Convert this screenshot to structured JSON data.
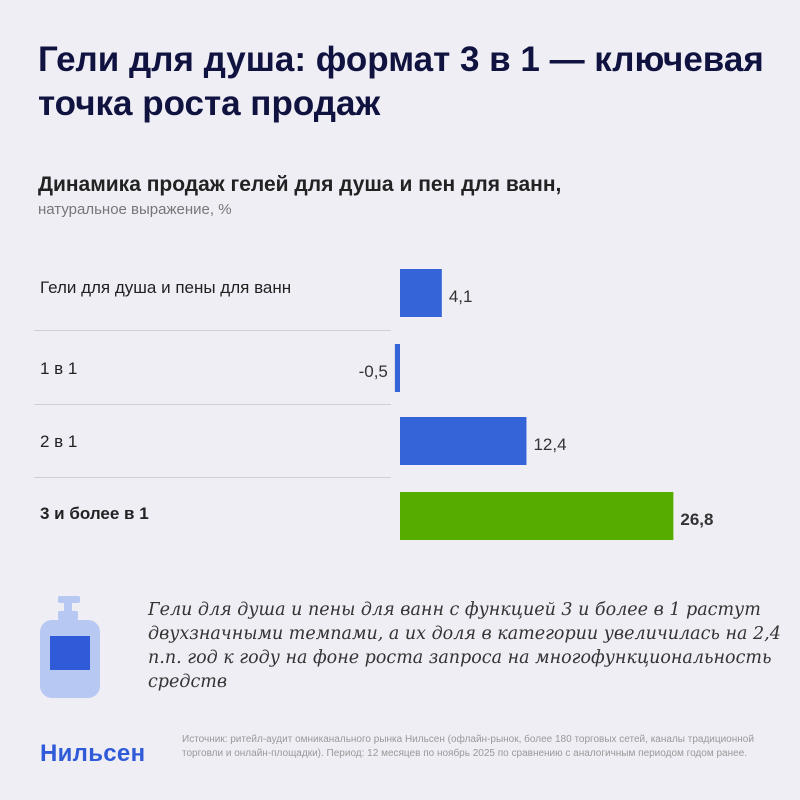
{
  "title": "Гели для душа: формат 3 в 1 — ключевая точка роста продаж",
  "chart_data": {
    "type": "bar",
    "orientation": "horizontal",
    "title": "Динамика продаж гелей для душа и пен для ванн,",
    "subtitle": "натуральное выражение, %",
    "categories": [
      "Гели для душа и пены для ванн",
      "1 в 1",
      "2 в 1",
      "3 и более в 1"
    ],
    "values": [
      4.1,
      -0.5,
      12.4,
      26.8
    ],
    "value_labels": [
      "4,1",
      "-0,5",
      "12,4",
      "26,8"
    ],
    "highlight_index": 3,
    "colors": {
      "bar": "#3563d8",
      "highlight": "#56ad00"
    }
  },
  "note": "Гели для душа и пены для ванн с функцией 3 и более в 1 растут двухзначными темпами, а их доля в категории увеличилась на 2,4 п.п. год к году на фоне роста запроса на многофункциональность средств",
  "logo": "Нильсен",
  "source": "Источник: ритейл-аудит омниканального рынка Нильсен (офлайн-рынок, более 180 торговых сетей, каналы традиционной торговли и онлайн-площадки). Период: 12 месяцев по ноябрь 2025 по сравнению с аналогичным периодом годом ранее.",
  "icons": {
    "illustration": "soap-dispenser-icon"
  }
}
